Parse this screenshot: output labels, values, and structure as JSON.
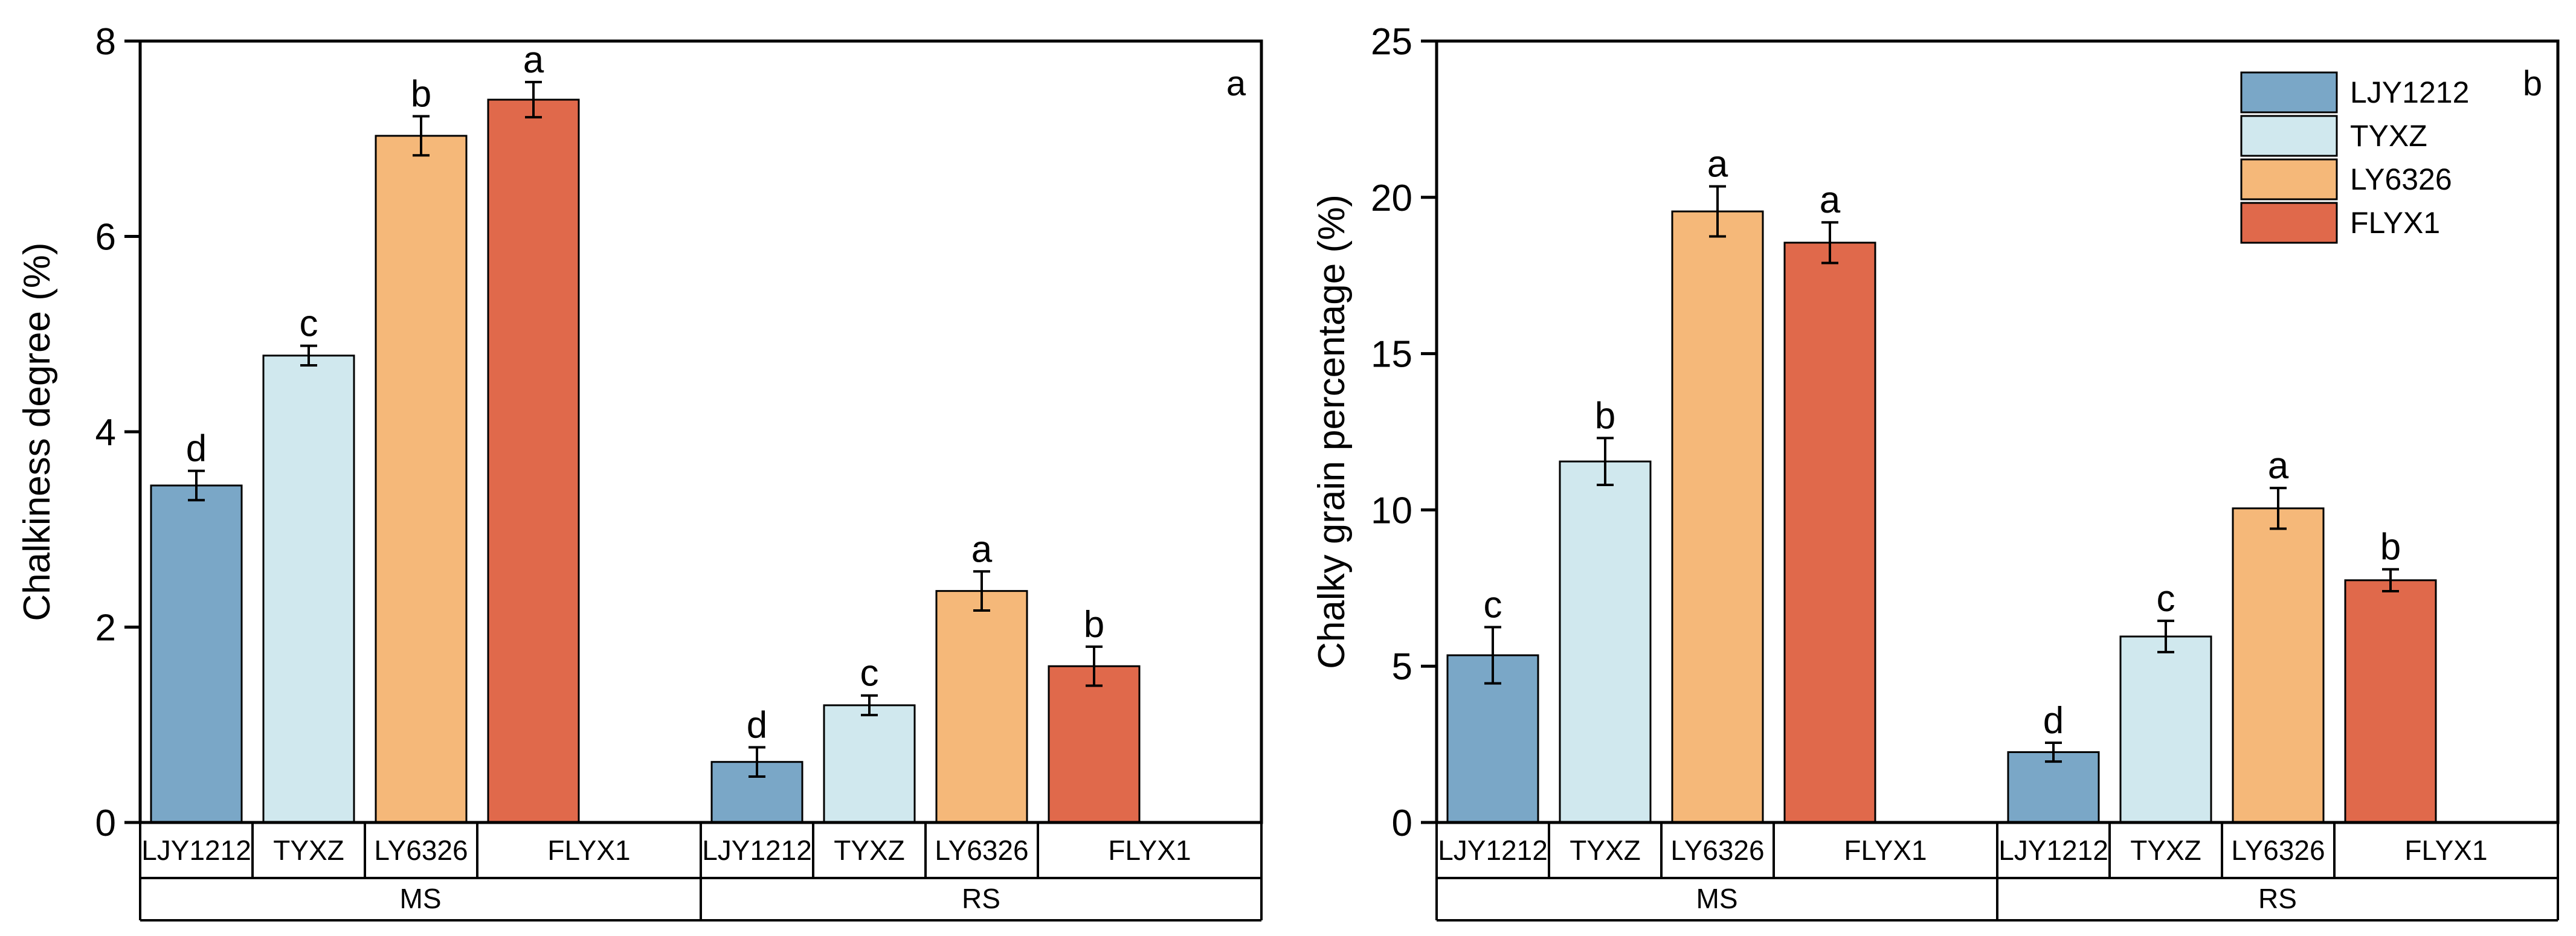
{
  "chart_data": [
    {
      "type": "bar",
      "panel_label": "a",
      "ylabel": "Chalkiness degree (%)",
      "ylim": [
        0,
        8
      ],
      "yticks": [
        0,
        2,
        4,
        6,
        8
      ],
      "groups": [
        "MS",
        "RS"
      ],
      "categories": [
        "LJY1212",
        "TYXZ",
        "LY6326",
        "FLYX1"
      ],
      "colors": [
        "#7aa7c7",
        "#d0e8ee",
        "#f5b879",
        "#e0694b"
      ],
      "series": [
        {
          "name": "MS",
          "values": [
            3.45,
            4.78,
            7.03,
            7.4
          ],
          "errors": [
            0.15,
            0.1,
            0.2,
            0.18
          ],
          "letters": [
            "d",
            "c",
            "b",
            "a"
          ]
        },
        {
          "name": "RS",
          "values": [
            0.62,
            1.2,
            2.37,
            1.6
          ],
          "errors": [
            0.15,
            0.1,
            0.2,
            0.2
          ],
          "letters": [
            "d",
            "c",
            "a",
            "b"
          ]
        }
      ]
    },
    {
      "type": "bar",
      "panel_label": "b",
      "ylabel": "Chalky grain percentage (%)",
      "ylim": [
        0,
        25
      ],
      "yticks": [
        0,
        5,
        10,
        15,
        20,
        25
      ],
      "groups": [
        "MS",
        "RS"
      ],
      "categories": [
        "LJY1212",
        "TYXZ",
        "LY6326",
        "FLYX1"
      ],
      "colors": [
        "#7aa7c7",
        "#d0e8ee",
        "#f5b879",
        "#e0694b"
      ],
      "legend": [
        "LJY1212",
        "TYXZ",
        "LY6326",
        "FLYX1"
      ],
      "legend_position": "top-right",
      "series": [
        {
          "name": "MS",
          "values": [
            5.35,
            11.55,
            19.55,
            18.55
          ],
          "errors": [
            0.9,
            0.75,
            0.8,
            0.65
          ],
          "letters": [
            "c",
            "b",
            "a",
            "a"
          ]
        },
        {
          "name": "RS",
          "values": [
            2.25,
            5.95,
            10.05,
            7.75
          ],
          "errors": [
            0.3,
            0.5,
            0.65,
            0.35
          ],
          "letters": [
            "d",
            "c",
            "a",
            "b"
          ]
        }
      ]
    }
  ]
}
